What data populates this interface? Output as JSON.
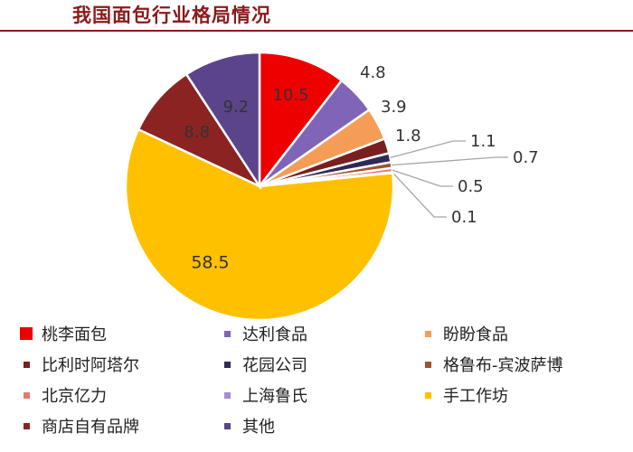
{
  "title": "我国面包行业格局情况",
  "chart_data": {
    "type": "pie",
    "slices": [
      {
        "label": "桃李面包",
        "value": 10.5,
        "color": "#ee0000",
        "label_display": "10.5"
      },
      {
        "label": "达利食品",
        "value": 4.8,
        "color": "#7f64b8",
        "label_display": "4.8"
      },
      {
        "label": "盼盼食品",
        "value": 3.9,
        "color": "#f59d56",
        "label_display": "3.9"
      },
      {
        "label": "比利时阿塔尔",
        "value": 1.8,
        "color": "#7a1f1f",
        "label_display": "1.8"
      },
      {
        "label": "花园公司",
        "value": 1.1,
        "color": "#2f2a55",
        "label_display": "1.1"
      },
      {
        "label": "格鲁布-宾波萨博",
        "value": 0.7,
        "color": "#a0522d",
        "label_display": "0.7"
      },
      {
        "label": "北京亿力",
        "value": 0.5,
        "color": "#e07b70",
        "label_display": "0.5"
      },
      {
        "label": "上海鲁氏",
        "value": 0.1,
        "color": "#a48ed0",
        "label_display": "0.1"
      },
      {
        "label": "手工作坊",
        "value": 58.5,
        "color": "#ffc000",
        "label_display": "58.5"
      },
      {
        "label": "商店自有品牌",
        "value": 8.8,
        "color": "#8b2323",
        "label_display": "8.8"
      },
      {
        "label": "其他",
        "value": 9.2,
        "color": "#5b4489",
        "label_display": "9.2"
      }
    ],
    "legend_placement": "bottom"
  }
}
